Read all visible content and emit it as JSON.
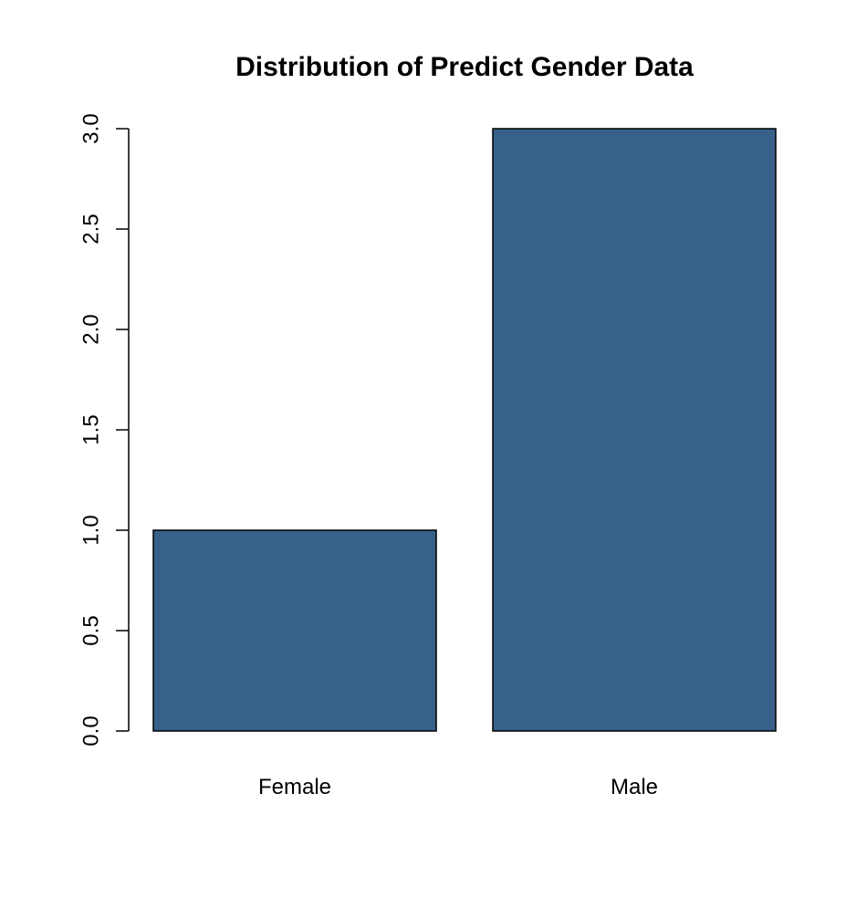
{
  "chart_data": {
    "type": "bar",
    "title": "Distribution of Predict Gender Data",
    "categories": [
      "Female",
      "Male"
    ],
    "values": [
      1,
      3
    ],
    "xlabel": "",
    "ylabel": "",
    "ylim": [
      0,
      3
    ],
    "yticks": [
      0,
      0.5,
      1,
      1.5,
      2,
      2.5,
      3
    ],
    "ytick_labels": [
      "0.0",
      "0.5",
      "1.0",
      "1.5",
      "2.0",
      "2.5",
      "3.0"
    ],
    "bar_color": "#376189",
    "grid": false,
    "legend": "none"
  }
}
